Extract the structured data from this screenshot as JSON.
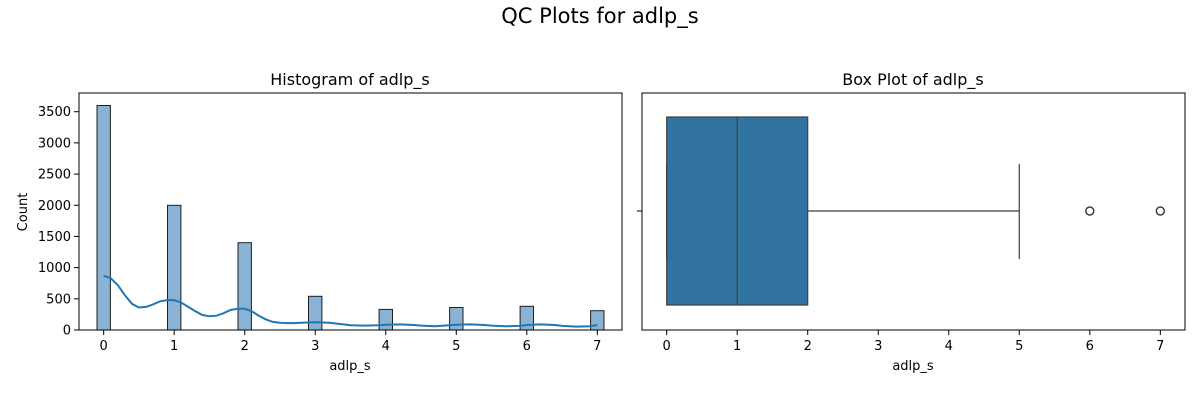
{
  "figure": {
    "title": "QC Plots for adlp_s"
  },
  "chart_data": [
    {
      "type": "bar",
      "title": "Histogram of adlp_s",
      "xlabel": "adlp_s",
      "ylabel": "Count",
      "xlim": [
        -0.35,
        7.35
      ],
      "ylim": [
        0,
        3800
      ],
      "xticks": [
        "0",
        "1",
        "2",
        "3",
        "4",
        "5",
        "6",
        "7"
      ],
      "yticks": [
        "0",
        "500",
        "1000",
        "1500",
        "2000",
        "2500",
        "3000",
        "3500"
      ],
      "bar_color": "#89b2d4",
      "edge_color": "#1f1f1f",
      "categories": [
        "0",
        "1",
        "2",
        "3",
        "4",
        "5",
        "6",
        "7"
      ],
      "values": [
        3600,
        2000,
        1400,
        540,
        330,
        360,
        380,
        310
      ],
      "kde": {
        "color": "#1f77b4",
        "x": [
          0,
          0.1,
          0.2,
          0.3,
          0.4,
          0.5,
          0.6,
          0.7,
          0.8,
          0.9,
          1.0,
          1.1,
          1.2,
          1.3,
          1.4,
          1.5,
          1.6,
          1.7,
          1.8,
          1.9,
          2.0,
          2.1,
          2.2,
          2.3,
          2.4,
          2.5,
          2.6,
          2.7,
          2.8,
          2.9,
          3.0,
          3.2,
          3.4,
          3.5,
          3.7,
          3.9,
          4.0,
          4.2,
          4.4,
          4.5,
          4.7,
          4.9,
          5.0,
          5.2,
          5.4,
          5.5,
          5.7,
          5.9,
          6.0,
          6.2,
          6.4,
          6.5,
          6.7,
          6.9,
          7.0
        ],
        "y": [
          870,
          830,
          720,
          560,
          420,
          360,
          370,
          410,
          460,
          480,
          480,
          440,
          370,
          300,
          240,
          220,
          230,
          270,
          320,
          340,
          340,
          300,
          230,
          170,
          130,
          115,
          110,
          110,
          115,
          120,
          125,
          115,
          90,
          75,
          70,
          75,
          85,
          90,
          80,
          70,
          60,
          75,
          85,
          90,
          80,
          70,
          60,
          65,
          80,
          90,
          80,
          65,
          55,
          60,
          80
        ]
      }
    },
    {
      "type": "box",
      "title": "Box Plot of adlp_s",
      "xlabel": "adlp_s",
      "xlim": [
        -0.35,
        7.35
      ],
      "xticks": [
        "0",
        "1",
        "2",
        "3",
        "4",
        "5",
        "6",
        "7"
      ],
      "box_color": "#3274a1",
      "min": 0,
      "q1": 0,
      "median": 1,
      "q3": 2,
      "whisker_high": 5,
      "outliers": [
        6,
        7
      ]
    }
  ]
}
